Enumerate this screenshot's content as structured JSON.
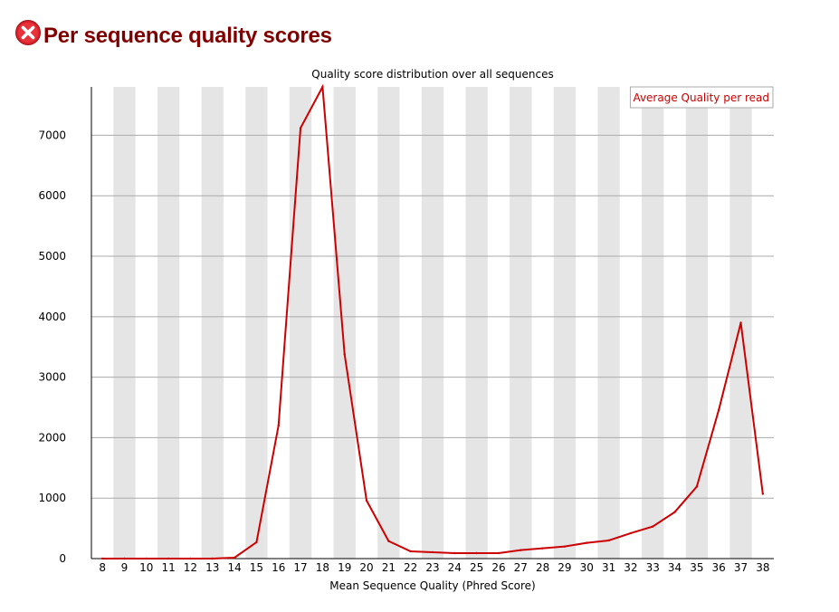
{
  "page": {
    "title": "Per sequence quality scores",
    "status_icon": "error-x-icon",
    "status_color": "#e0202a"
  },
  "chart_data": {
    "type": "line",
    "title": "Quality score distribution over all sequences",
    "xlabel": "Mean Sequence Quality (Phred Score)",
    "ylabel": "",
    "x": [
      8,
      9,
      10,
      11,
      12,
      13,
      14,
      15,
      16,
      17,
      18,
      19,
      20,
      21,
      22,
      23,
      24,
      25,
      26,
      27,
      28,
      29,
      30,
      31,
      32,
      33,
      34,
      35,
      36,
      37,
      38
    ],
    "series": [
      {
        "name": "Average Quality per read",
        "color": "#cc0000",
        "values": [
          0,
          0,
          0,
          0,
          0,
          0,
          15,
          270,
          2200,
          7120,
          7800,
          3380,
          960,
          290,
          120,
          105,
          90,
          90,
          90,
          140,
          170,
          200,
          260,
          300,
          420,
          530,
          770,
          1190,
          2460,
          3900,
          1070
        ]
      }
    ],
    "ylim": [
      0,
      7800
    ],
    "yticks": [
      0,
      1000,
      2000,
      3000,
      4000,
      5000,
      6000,
      7000
    ],
    "grid": true,
    "legend": "top-right",
    "band_color": "#e5e5e5",
    "grid_color": "#aaaaaa"
  }
}
